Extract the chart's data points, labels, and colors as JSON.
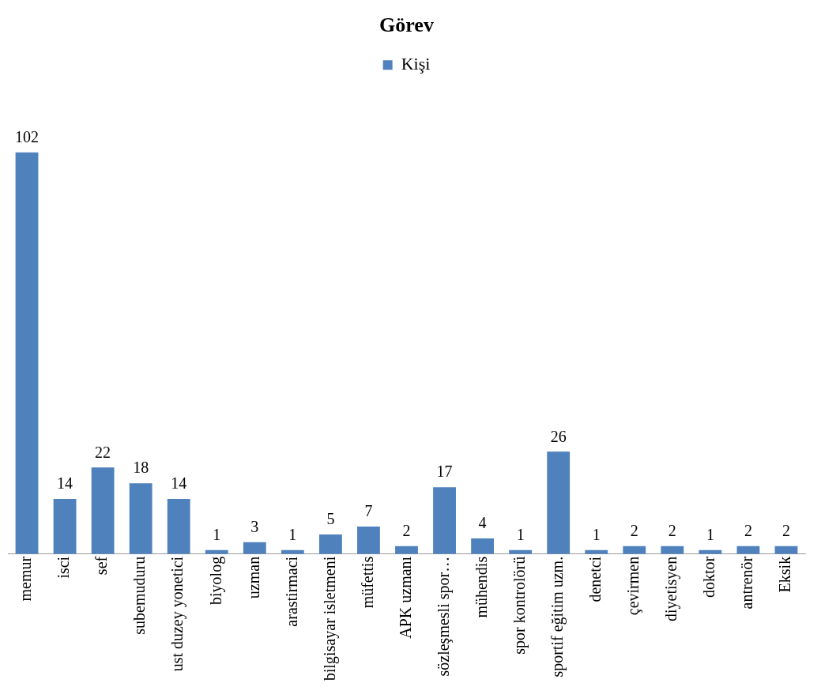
{
  "chart_data": {
    "type": "bar",
    "title": "Görev",
    "categories": [
      "memur",
      "isci",
      "sef",
      "subemuduru",
      "ust duzey yonetici",
      "biyolog",
      "uzman",
      "arastirmaci",
      "bilgisayar isletmeni",
      "müfettis",
      "APK uzmanı",
      "sözleşmesli spor…",
      "mühendis",
      "spor kontrolörü",
      "sportif eğitim uzm.",
      "denetci",
      "çevirmen",
      "diyetisyen",
      "doktor",
      "antrenör",
      "Eksik"
    ],
    "series": [
      {
        "name": "Kişi",
        "color": "#4f81bd",
        "values": [
          102,
          14,
          22,
          18,
          14,
          1,
          3,
          1,
          5,
          7,
          2,
          17,
          4,
          1,
          26,
          1,
          2,
          2,
          1,
          2,
          2
        ]
      }
    ],
    "data_labels": true,
    "legend": "top",
    "grid": false
  }
}
